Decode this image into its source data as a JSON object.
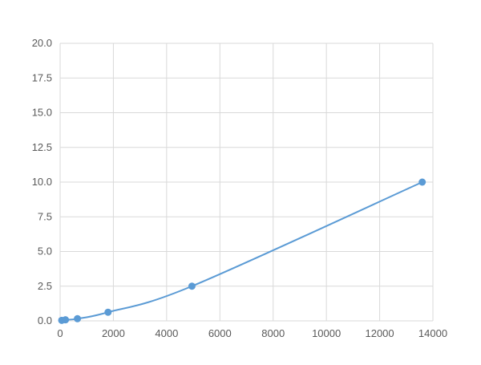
{
  "chart_data": {
    "type": "scatter",
    "title": "",
    "xlabel": "",
    "ylabel": "",
    "xlim": [
      0,
      14000
    ],
    "ylim": [
      0,
      20
    ],
    "x_ticks": [
      "0",
      "2000",
      "4000",
      "6000",
      "8000",
      "10000",
      "12000",
      "14000"
    ],
    "y_ticks": [
      "0.0",
      "2.5",
      "5.0",
      "7.5",
      "10.0",
      "12.5",
      "15.0",
      "17.5",
      "20.0"
    ],
    "grid": true,
    "legend": "none",
    "series": [
      {
        "color": "#5b9bd5",
        "line": "smooth",
        "points": [
          {
            "x": 60,
            "y": 0.039
          },
          {
            "x": 200,
            "y": 0.078
          },
          {
            "x": 650,
            "y": 0.156
          },
          {
            "x": 1800,
            "y": 0.625
          },
          {
            "x": 4950,
            "y": 2.5
          },
          {
            "x": 13600,
            "y": 10
          }
        ]
      }
    ]
  }
}
